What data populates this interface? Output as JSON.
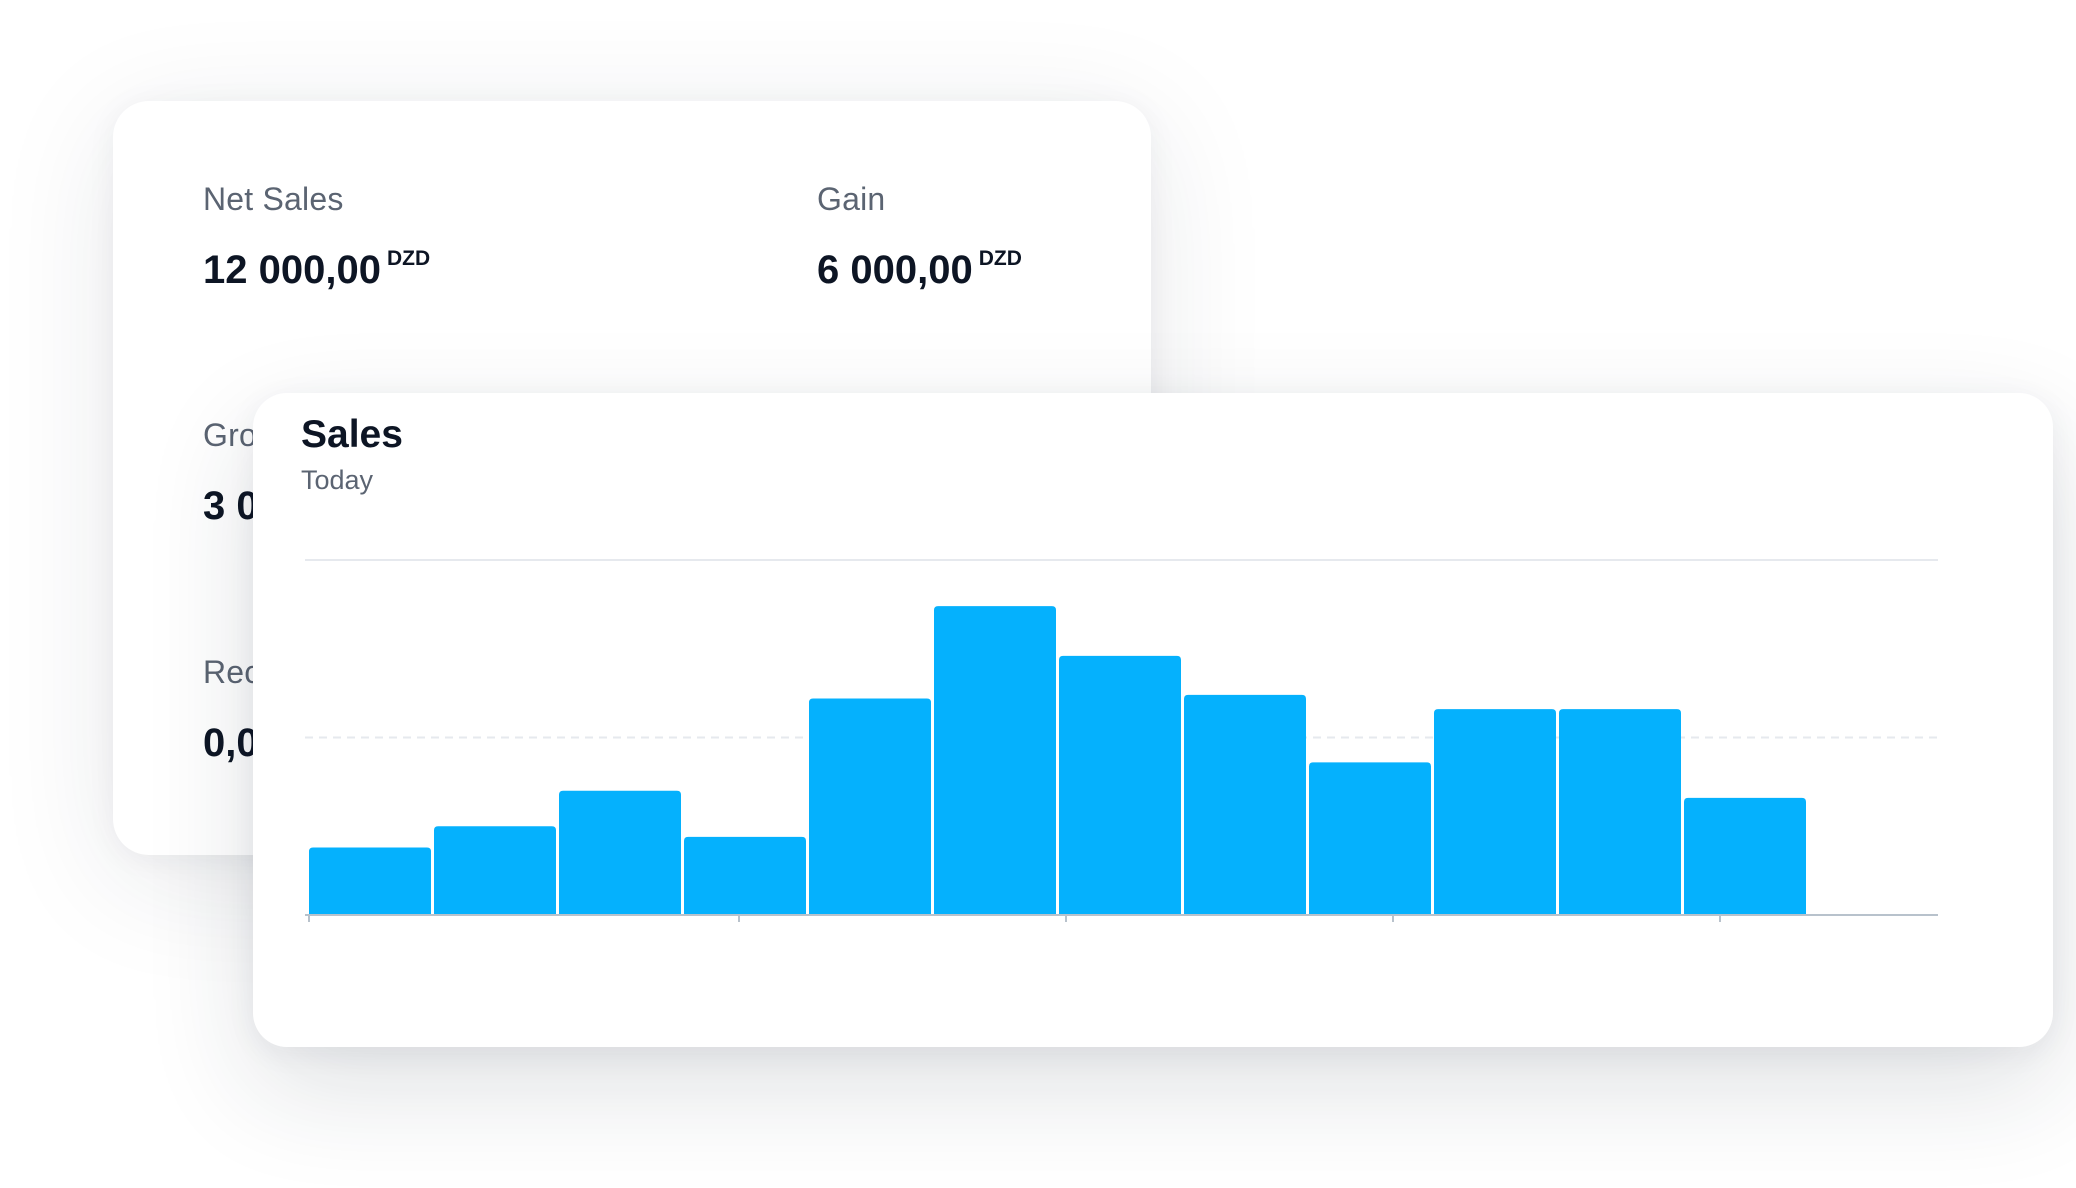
{
  "stats": [
    {
      "label": "Net Sales",
      "value": "12 000,00",
      "unit": "DZD"
    },
    {
      "label": "Gain",
      "value": "6 000,00",
      "unit": "DZD"
    },
    {
      "label": "Gro",
      "value": "3 0",
      "unit": ""
    },
    {
      "label": "Rec",
      "value": "0,0",
      "unit": ""
    }
  ],
  "sales_card": {
    "title": "Sales",
    "subtitle": "Today"
  },
  "colors": {
    "bar": "#05b1fd",
    "grid": "#e6e9ee",
    "axis": "#b8c2cc",
    "text_dark": "#0d1524",
    "text_muted": "#5b6472"
  },
  "chart_data": {
    "type": "bar",
    "title": "Sales",
    "subtitle": "Today",
    "values": [
      19,
      25,
      35,
      22,
      61,
      87,
      73,
      62,
      43,
      58,
      58,
      33
    ],
    "ylim": [
      0,
      100
    ],
    "grid": true,
    "grid_lines": [
      100,
      50
    ]
  }
}
